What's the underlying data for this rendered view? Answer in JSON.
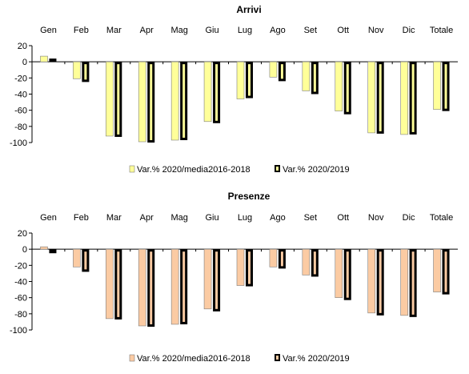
{
  "chart_data": [
    {
      "type": "bar",
      "title": "Arrivi",
      "categories": [
        "Gen",
        "Feb",
        "Mar",
        "Apr",
        "Mag",
        "Giu",
        "Lug",
        "Ago",
        "Set",
        "Ott",
        "Nov",
        "Dic",
        "Totale"
      ],
      "series": [
        {
          "name": "Var.% 2020/media2016-2018",
          "color": "#ffff99",
          "values": [
            7,
            -21,
            -92,
            -99,
            -97,
            -74,
            -46,
            -19,
            -36,
            -61,
            -88,
            -90,
            -59
          ]
        },
        {
          "name": "Var.% 2020/2019",
          "color": "#ffff99",
          "values": [
            4,
            -25,
            -93,
            -100,
            -97,
            -76,
            -45,
            -24,
            -40,
            -65,
            -89,
            -90,
            -61
          ]
        }
      ],
      "ylim": [
        -100,
        20
      ],
      "yticks": [
        20,
        0,
        -20,
        -40,
        -60,
        -80,
        -100
      ],
      "grid": false,
      "legend": "bottom",
      "category_labels_position": "top"
    },
    {
      "type": "bar",
      "title": "Presenze",
      "categories": [
        "Gen",
        "Feb",
        "Mar",
        "Apr",
        "Mag",
        "Giu",
        "Lug",
        "Ago",
        "Set",
        "Ott",
        "Nov",
        "Dic",
        "Totale"
      ],
      "series": [
        {
          "name": "Var.% 2020/media2016-2018",
          "color": "#fbcba3",
          "values": [
            3,
            -22,
            -86,
            -95,
            -93,
            -74,
            -45,
            -22,
            -32,
            -60,
            -79,
            -82,
            -53
          ]
        },
        {
          "name": "Var.% 2020/2019",
          "color": "#fbcba3",
          "values": [
            -5,
            -28,
            -87,
            -96,
            -93,
            -77,
            -46,
            -24,
            -34,
            -63,
            -82,
            -84,
            -56
          ]
        }
      ],
      "ylim": [
        -100,
        20
      ],
      "yticks": [
        20,
        0,
        -20,
        -40,
        -60,
        -80,
        -100
      ],
      "grid": false,
      "legend": "bottom",
      "category_labels_position": "top"
    }
  ]
}
